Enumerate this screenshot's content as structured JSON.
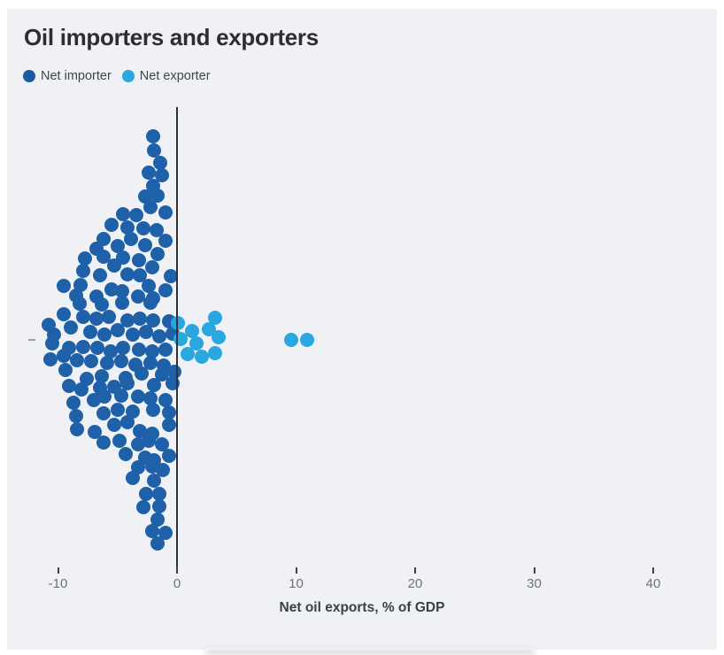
{
  "header": {
    "title": "Oil importers and exporters"
  },
  "legend": {
    "items": [
      {
        "label": "Net importer",
        "color": "#1b59a1"
      },
      {
        "label": "Net exporter",
        "color": "#2ba7e0"
      }
    ]
  },
  "chart_data": {
    "type": "scatter",
    "variant": "beeswarm",
    "title": "Oil importers and exporters",
    "xlabel": "Net oil exports, % of GDP",
    "ylabel": "",
    "y_tick_label": "–",
    "x_ticks": [
      -10,
      0,
      10,
      20,
      30,
      40
    ],
    "x_tick_labels": [
      "-10",
      "0",
      "10",
      "20",
      "30",
      "40"
    ],
    "xlim": [
      -12.5,
      45
    ],
    "grid": false,
    "legend_position": "top-left",
    "note": "Each point is one country; points are [net_oil_exports_pct_gdp, vertical_swarm_offset_px]",
    "series": [
      {
        "name": "Net importer",
        "color": "#1f61a8",
        "points": [
          [
            -2.0,
            -231
          ],
          [
            -1.9,
            -215
          ],
          [
            -1.4,
            -201
          ],
          [
            -2.4,
            -190
          ],
          [
            -1.3,
            -187
          ],
          [
            -2.0,
            -175
          ],
          [
            -2.7,
            -163
          ],
          [
            -1.6,
            -164
          ],
          [
            -2.2,
            -151
          ],
          [
            -1.0,
            -145
          ],
          [
            -4.5,
            -143
          ],
          [
            -3.4,
            -142
          ],
          [
            -5.5,
            -131
          ],
          [
            -4.2,
            -128
          ],
          [
            -2.8,
            -127
          ],
          [
            -1.7,
            -125
          ],
          [
            -6.2,
            -115
          ],
          [
            -3.9,
            -115
          ],
          [
            -1.0,
            -113
          ],
          [
            -6.8,
            -104
          ],
          [
            -5.0,
            -107
          ],
          [
            -2.7,
            -108
          ],
          [
            -7.7,
            -93
          ],
          [
            -6.2,
            -95
          ],
          [
            -4.5,
            -94
          ],
          [
            -3.2,
            -91
          ],
          [
            -1.6,
            -98
          ],
          [
            -5.3,
            -85
          ],
          [
            -2.1,
            -83
          ],
          [
            -7.9,
            -79
          ],
          [
            -6.5,
            -74
          ],
          [
            -4.2,
            -75
          ],
          [
            -3.1,
            -74
          ],
          [
            -0.5,
            -73
          ],
          [
            -9.5,
            -62
          ],
          [
            -8.1,
            -63
          ],
          [
            -5.5,
            -58
          ],
          [
            -4.6,
            -56
          ],
          [
            -2.4,
            -62
          ],
          [
            -1.0,
            -57
          ],
          [
            -8.5,
            -51
          ],
          [
            -6.8,
            -50
          ],
          [
            -3.3,
            -50
          ],
          [
            -2.0,
            -48
          ],
          [
            -8.2,
            -42
          ],
          [
            -6.3,
            -41
          ],
          [
            -4.6,
            -43
          ],
          [
            -2.2,
            -43
          ],
          [
            -9.5,
            -30
          ],
          [
            -7.9,
            -27
          ],
          [
            -6.8,
            -25
          ],
          [
            -5.7,
            -27
          ],
          [
            -4.2,
            -23
          ],
          [
            -3.1,
            -25
          ],
          [
            -2.0,
            -23
          ],
          [
            -0.7,
            -22
          ],
          [
            -10.8,
            -18
          ],
          [
            -10.3,
            -7
          ],
          [
            -8.9,
            -15
          ],
          [
            -7.3,
            -10
          ],
          [
            -6.1,
            -7
          ],
          [
            -5.0,
            -12
          ],
          [
            -3.7,
            -7
          ],
          [
            -2.6,
            -10
          ],
          [
            -1.5,
            -5
          ],
          [
            -0.4,
            -8
          ],
          [
            -10.5,
            3
          ],
          [
            -9.1,
            8
          ],
          [
            -7.9,
            7
          ],
          [
            -6.7,
            8
          ],
          [
            -5.6,
            12
          ],
          [
            -4.5,
            8
          ],
          [
            -3.2,
            10
          ],
          [
            -2.1,
            12
          ],
          [
            -1.0,
            10
          ],
          [
            -10.6,
            21
          ],
          [
            -9.5,
            17
          ],
          [
            -8.4,
            22
          ],
          [
            -7.2,
            23
          ],
          [
            -5.9,
            25
          ],
          [
            -4.7,
            23
          ],
          [
            -3.5,
            27
          ],
          [
            -2.2,
            25
          ],
          [
            -1.1,
            28
          ],
          [
            -0.2,
            35
          ],
          [
            -9.4,
            33
          ],
          [
            -7.6,
            43
          ],
          [
            -6.3,
            40
          ],
          [
            -4.3,
            42
          ],
          [
            -3.0,
            37
          ],
          [
            -1.3,
            38
          ],
          [
            -0.4,
            48
          ],
          [
            -9.1,
            51
          ],
          [
            -8.0,
            55
          ],
          [
            -6.5,
            53
          ],
          [
            -5.3,
            52
          ],
          [
            -4.2,
            48
          ],
          [
            -1.9,
            50
          ],
          [
            -8.7,
            70
          ],
          [
            -7.0,
            67
          ],
          [
            -6.1,
            63
          ],
          [
            -4.7,
            62
          ],
          [
            -3.3,
            63
          ],
          [
            -2.2,
            65
          ],
          [
            -1.0,
            67
          ],
          [
            -8.5,
            85
          ],
          [
            -6.2,
            82
          ],
          [
            -5.0,
            78
          ],
          [
            -3.7,
            80
          ],
          [
            -2.0,
            78
          ],
          [
            -0.7,
            81
          ],
          [
            -8.4,
            100
          ],
          [
            -6.9,
            103
          ],
          [
            -5.3,
            95
          ],
          [
            -4.2,
            92
          ],
          [
            -3.1,
            102
          ],
          [
            -2.1,
            105
          ],
          [
            -0.7,
            95
          ],
          [
            -6.2,
            115
          ],
          [
            -4.8,
            113
          ],
          [
            -3.3,
            117
          ],
          [
            -2.4,
            113
          ],
          [
            -1.3,
            117
          ],
          [
            -4.3,
            128
          ],
          [
            -2.7,
            132
          ],
          [
            -1.9,
            135
          ],
          [
            -0.7,
            130
          ],
          [
            -3.3,
            143
          ],
          [
            -2.1,
            142
          ],
          [
            -1.2,
            146
          ],
          [
            -3.7,
            155
          ],
          [
            -1.9,
            158
          ],
          [
            -2.6,
            173
          ],
          [
            -1.5,
            173
          ],
          [
            -2.8,
            188
          ],
          [
            -1.5,
            187
          ],
          [
            -1.6,
            202
          ],
          [
            -2.1,
            215
          ],
          [
            -1.0,
            217
          ],
          [
            -1.6,
            229
          ]
        ]
      },
      {
        "name": "Net exporter",
        "color": "#2ba7e0",
        "points": [
          [
            0.1,
            -20
          ],
          [
            3.2,
            -26
          ],
          [
            1.3,
            -11
          ],
          [
            2.7,
            -13
          ],
          [
            0.3,
            -2
          ],
          [
            1.6,
            3
          ],
          [
            3.5,
            -4
          ],
          [
            0.9,
            15
          ],
          [
            2.1,
            18
          ],
          [
            3.2,
            14
          ],
          [
            9.6,
            -1
          ],
          [
            10.9,
            -1
          ]
        ]
      }
    ]
  }
}
